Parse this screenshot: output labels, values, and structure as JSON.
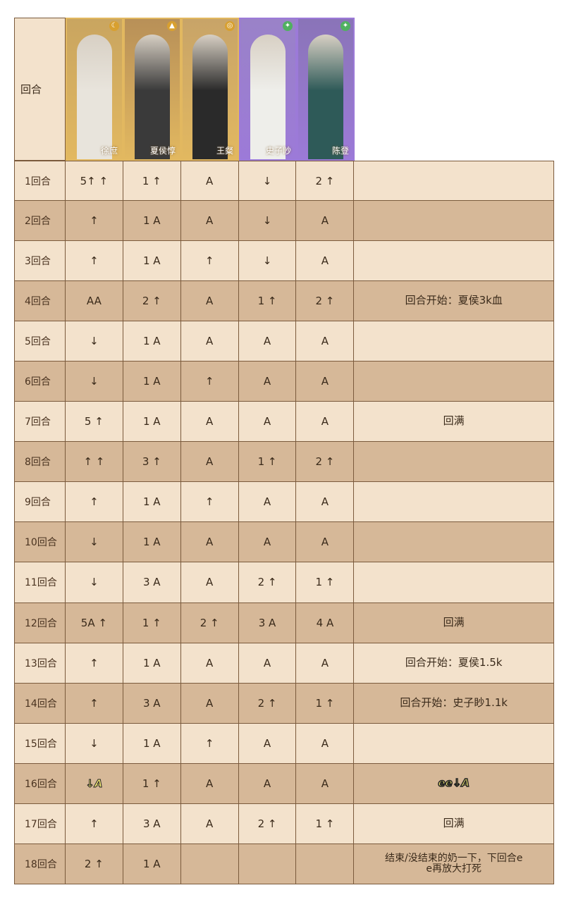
{
  "header": {
    "round_label": "回合",
    "characters": [
      {
        "name": "徐庶",
        "frame": "gold",
        "element": "moon-icon",
        "bg": "#c9a560",
        "fig": "#e8e4dc"
      },
      {
        "name": "夏侯惇",
        "frame": "gold",
        "element": "mountain-icon",
        "bg": "#b89058",
        "fig": "#3a3a3a"
      },
      {
        "name": "王粲",
        "frame": "gold",
        "element": "wind-icon",
        "bg": "#c8a468",
        "fig": "#2a2a2a"
      },
      {
        "name": "史子眇",
        "frame": "purple",
        "element": "leaf-icon",
        "bg": "#9a82c8",
        "fig": "#eeeeea"
      },
      {
        "name": "陈登",
        "frame": "purple",
        "element": "leaf-icon",
        "bg": "#8a74b8",
        "fig": "#2e5a58"
      }
    ]
  },
  "rows": [
    {
      "round": "1回合",
      "cells": [
        "5↑ ↑",
        "1 ↑",
        "A",
        "↓",
        "2 ↑"
      ],
      "note": ""
    },
    {
      "round": "2回合",
      "cells": [
        "↑",
        "1 A",
        "A",
        "↓",
        "A"
      ],
      "note": ""
    },
    {
      "round": "3回合",
      "cells": [
        "↑",
        "1 A",
        "↑",
        "↓",
        "A"
      ],
      "note": ""
    },
    {
      "round": "4回合",
      "cells": [
        "AA",
        "2 ↑",
        "A",
        "1 ↑",
        "2 ↑"
      ],
      "note": "回合开始：夏侯3k血"
    },
    {
      "round": "5回合",
      "cells": [
        "↓",
        "1 A",
        "A",
        "A",
        "A"
      ],
      "note": ""
    },
    {
      "round": "6回合",
      "cells": [
        "↓",
        "1 A",
        "↑",
        "A",
        "A"
      ],
      "note": ""
    },
    {
      "round": "7回合",
      "cells": [
        "5 ↑",
        "1 A",
        "A",
        "A",
        "A"
      ],
      "note": "回满"
    },
    {
      "round": "8回合",
      "cells": [
        "↑ ↑",
        "3 ↑",
        "A",
        "1 ↑",
        "2 ↑"
      ],
      "note": ""
    },
    {
      "round": "9回合",
      "cells": [
        "↑",
        "1 A",
        "↑",
        "A",
        "A"
      ],
      "note": ""
    },
    {
      "round": "10回合",
      "cells": [
        "↓",
        "1 A",
        "A",
        "A",
        "A"
      ],
      "note": ""
    },
    {
      "round": "11回合",
      "cells": [
        "↓",
        "3 A",
        "A",
        "2 ↑",
        "1 ↑"
      ],
      "note": ""
    },
    {
      "round": "12回合",
      "cells": [
        "5A ↑",
        "1 ↑",
        "2 ↑",
        "3 A",
        "4 A"
      ],
      "note": "回满"
    },
    {
      "round": "13回合",
      "cells": [
        "↑",
        "1 A",
        "A",
        "A",
        "A"
      ],
      "note": "回合开始：夏侯1.5k"
    },
    {
      "round": "14回合",
      "cells": [
        "↑",
        "3 A",
        "A",
        "2 ↑",
        "1 ↑"
      ],
      "note": "回合开始：史子眇1.1k"
    },
    {
      "round": "15回合",
      "cells": [
        "↓",
        "1 A",
        "↑",
        "A",
        "A"
      ],
      "note": ""
    },
    {
      "round": "16回合",
      "cells": [
        "↓A",
        "1 ↑",
        "A",
        "A",
        "A"
      ],
      "note": "ee↓A"
    },
    {
      "round": "17回合",
      "cells": [
        "↑",
        "3 A",
        "A",
        "2 ↑",
        "1 ↑"
      ],
      "note": "回满"
    },
    {
      "round": "18回合",
      "cells": [
        "2 ↑",
        "1 A",
        "",
        "",
        ""
      ],
      "note": "结束/没结束的奶一下，下回合e\ne再放大打死"
    }
  ]
}
